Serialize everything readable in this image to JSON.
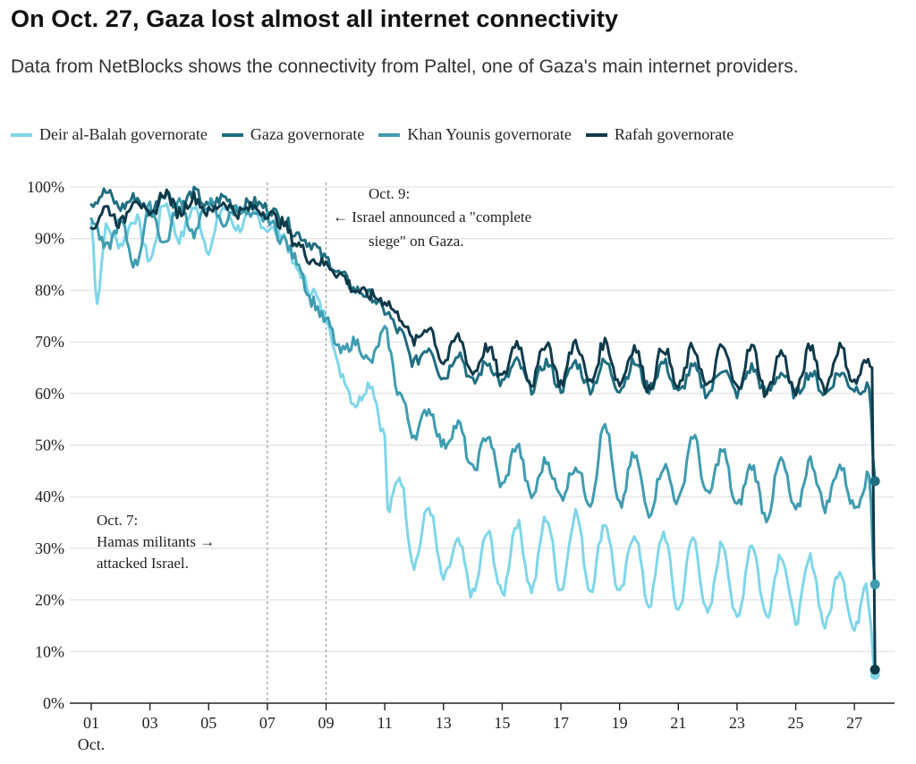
{
  "title": "On Oct. 27, Gaza lost almost all internet connectivity",
  "subtitle": "Data from NetBlocks shows the connectivity from Paltel, one of Gaza's main internet providers.",
  "chart_data": {
    "type": "line",
    "x_unit": "day of October",
    "xlim": [
      1,
      27.8
    ],
    "ylim": [
      0,
      100
    ],
    "y_ticks": [
      0,
      10,
      20,
      30,
      40,
      50,
      60,
      70,
      80,
      90,
      100
    ],
    "y_tick_labels": [
      "0%",
      "10%",
      "20%",
      "30%",
      "40%",
      "50%",
      "60%",
      "70%",
      "80%",
      "90%",
      "100%"
    ],
    "x_ticks": [
      1,
      3,
      5,
      7,
      9,
      11,
      13,
      15,
      17,
      19,
      21,
      23,
      25,
      27
    ],
    "x_tick_labels": [
      "01",
      "03",
      "05",
      "07",
      "09",
      "11",
      "13",
      "15",
      "17",
      "19",
      "21",
      "23",
      "25",
      "27"
    ],
    "x_sublabel": "Oct.",
    "grid": "horizontal",
    "legend_position": "top-left",
    "series": [
      {
        "name": "Deir al-Balah governorate",
        "color": "#7fd6e8",
        "points": [
          [
            1,
            93
          ],
          [
            1.2,
            78
          ],
          [
            1.5,
            92
          ],
          [
            2,
            89
          ],
          [
            2.5,
            94
          ],
          [
            3,
            86
          ],
          [
            3.5,
            97
          ],
          [
            4,
            90
          ],
          [
            4.5,
            96
          ],
          [
            5,
            88
          ],
          [
            5.5,
            96
          ],
          [
            6,
            92
          ],
          [
            6.5,
            95
          ],
          [
            7,
            92
          ],
          [
            7.5,
            91
          ],
          [
            8,
            84
          ],
          [
            8.5,
            80
          ],
          [
            9,
            75
          ],
          [
            9.5,
            64
          ],
          [
            10,
            58
          ],
          [
            10.5,
            62
          ],
          [
            11,
            52
          ],
          [
            11.1,
            37
          ],
          [
            11.5,
            44
          ],
          [
            12,
            27
          ],
          [
            12.5,
            38
          ],
          [
            13,
            24
          ],
          [
            13.5,
            31
          ],
          [
            14,
            21
          ],
          [
            14.5,
            33
          ],
          [
            15,
            21
          ],
          [
            15.5,
            35
          ],
          [
            16,
            22
          ],
          [
            16.5,
            36
          ],
          [
            17,
            22
          ],
          [
            17.5,
            37
          ],
          [
            18,
            22
          ],
          [
            18.5,
            35
          ],
          [
            19,
            21
          ],
          [
            19.5,
            33
          ],
          [
            20,
            19
          ],
          [
            20.5,
            33
          ],
          [
            21,
            18
          ],
          [
            21.5,
            32
          ],
          [
            22,
            17
          ],
          [
            22.5,
            31
          ],
          [
            23,
            16
          ],
          [
            23.5,
            31
          ],
          [
            24,
            17
          ],
          [
            24.5,
            29
          ],
          [
            25,
            16
          ],
          [
            25.5,
            28
          ],
          [
            26,
            15
          ],
          [
            26.5,
            26
          ],
          [
            27,
            14
          ],
          [
            27.4,
            24
          ],
          [
            27.5,
            18
          ],
          [
            27.7,
            5.5
          ]
        ]
      },
      {
        "name": "Gaza governorate",
        "color": "#1f6e80",
        "points": [
          [
            1,
            97
          ],
          [
            1.5,
            99
          ],
          [
            2,
            96
          ],
          [
            2.5,
            98
          ],
          [
            3,
            95
          ],
          [
            3.5,
            99
          ],
          [
            4,
            96
          ],
          [
            4.5,
            99
          ],
          [
            5,
            96
          ],
          [
            5.5,
            98
          ],
          [
            6,
            96
          ],
          [
            6.5,
            97
          ],
          [
            7,
            96
          ],
          [
            7.5,
            94
          ],
          [
            8,
            91
          ],
          [
            8.5,
            89
          ],
          [
            9,
            86
          ],
          [
            9.5,
            83
          ],
          [
            10,
            80
          ],
          [
            10.5,
            79
          ],
          [
            11,
            76
          ],
          [
            11.5,
            72
          ],
          [
            12,
            66
          ],
          [
            12.5,
            69
          ],
          [
            13,
            63
          ],
          [
            13.5,
            68
          ],
          [
            14,
            62
          ],
          [
            14.5,
            66
          ],
          [
            15,
            62
          ],
          [
            15.5,
            66
          ],
          [
            16,
            61
          ],
          [
            16.5,
            66
          ],
          [
            17,
            61
          ],
          [
            17.5,
            66
          ],
          [
            18,
            61
          ],
          [
            18.5,
            66
          ],
          [
            19,
            61
          ],
          [
            19.5,
            66
          ],
          [
            20,
            61
          ],
          [
            20.5,
            66
          ],
          [
            21,
            60
          ],
          [
            21.5,
            65
          ],
          [
            22,
            60
          ],
          [
            22.5,
            65
          ],
          [
            23,
            60
          ],
          [
            23.5,
            65
          ],
          [
            24,
            60
          ],
          [
            24.5,
            64
          ],
          [
            25,
            60
          ],
          [
            25.5,
            64
          ],
          [
            26,
            60
          ],
          [
            26.5,
            64
          ],
          [
            27,
            61
          ],
          [
            27.5,
            61
          ],
          [
            27.7,
            43
          ]
        ]
      },
      {
        "name": "Khan Younis governorate",
        "color": "#3f9cb0",
        "points": [
          [
            1,
            94
          ],
          [
            1.5,
            88
          ],
          [
            2,
            93
          ],
          [
            2.5,
            85
          ],
          [
            3,
            96
          ],
          [
            3.5,
            89
          ],
          [
            4,
            97
          ],
          [
            4.5,
            91
          ],
          [
            5,
            97
          ],
          [
            5.5,
            93
          ],
          [
            6,
            96
          ],
          [
            6.5,
            94
          ],
          [
            7,
            94
          ],
          [
            7.5,
            90
          ],
          [
            8,
            86
          ],
          [
            8.5,
            78
          ],
          [
            9,
            74
          ],
          [
            9.5,
            68
          ],
          [
            10,
            70
          ],
          [
            10.5,
            66
          ],
          [
            11,
            72
          ],
          [
            11.5,
            60
          ],
          [
            12,
            52
          ],
          [
            12.5,
            57
          ],
          [
            13,
            50
          ],
          [
            13.5,
            54
          ],
          [
            14,
            45
          ],
          [
            14.5,
            52
          ],
          [
            15,
            42
          ],
          [
            15.5,
            50
          ],
          [
            16,
            40
          ],
          [
            16.5,
            47
          ],
          [
            17,
            40
          ],
          [
            17.5,
            46
          ],
          [
            18,
            39
          ],
          [
            18.5,
            54
          ],
          [
            19,
            38
          ],
          [
            19.5,
            48
          ],
          [
            20,
            37
          ],
          [
            20.5,
            46
          ],
          [
            21,
            39
          ],
          [
            21.5,
            52
          ],
          [
            22,
            40
          ],
          [
            22.5,
            49
          ],
          [
            23,
            38
          ],
          [
            23.5,
            46
          ],
          [
            24,
            36
          ],
          [
            24.5,
            47
          ],
          [
            25,
            37
          ],
          [
            25.5,
            47
          ],
          [
            26,
            38
          ],
          [
            26.5,
            46
          ],
          [
            27,
            38
          ],
          [
            27.5,
            44
          ],
          [
            27.7,
            23
          ]
        ]
      },
      {
        "name": "Rafah governorate",
        "color": "#0f3a4a",
        "points": [
          [
            1,
            92
          ],
          [
            1.5,
            96
          ],
          [
            2,
            93
          ],
          [
            2.5,
            98
          ],
          [
            3,
            94
          ],
          [
            3.5,
            99
          ],
          [
            4,
            95
          ],
          [
            4.5,
            98
          ],
          [
            5,
            95
          ],
          [
            5.5,
            97
          ],
          [
            6,
            95
          ],
          [
            6.5,
            96
          ],
          [
            7,
            95
          ],
          [
            7.5,
            93
          ],
          [
            8,
            89
          ],
          [
            8.5,
            86
          ],
          [
            9,
            85
          ],
          [
            9.5,
            83
          ],
          [
            10,
            80
          ],
          [
            10.5,
            79
          ],
          [
            11,
            78
          ],
          [
            11.5,
            75
          ],
          [
            12,
            70
          ],
          [
            12.5,
            73
          ],
          [
            13,
            66
          ],
          [
            13.5,
            71
          ],
          [
            14,
            64
          ],
          [
            14.5,
            69
          ],
          [
            15,
            63
          ],
          [
            15.5,
            70
          ],
          [
            16,
            62
          ],
          [
            16.5,
            70
          ],
          [
            17,
            62
          ],
          [
            17.5,
            70
          ],
          [
            18,
            62
          ],
          [
            18.5,
            70
          ],
          [
            19,
            62
          ],
          [
            19.5,
            69
          ],
          [
            20,
            61
          ],
          [
            20.5,
            69
          ],
          [
            21,
            61
          ],
          [
            21.5,
            69
          ],
          [
            22,
            61
          ],
          [
            22.5,
            69
          ],
          [
            23,
            61
          ],
          [
            23.5,
            69
          ],
          [
            24,
            60
          ],
          [
            24.5,
            68
          ],
          [
            25,
            60
          ],
          [
            25.5,
            69
          ],
          [
            26,
            61
          ],
          [
            26.5,
            69
          ],
          [
            27,
            62
          ],
          [
            27.4,
            66
          ],
          [
            27.6,
            65
          ],
          [
            27.7,
            6.5
          ]
        ]
      }
    ],
    "annotations": [
      {
        "x": 7,
        "lines": [
          "Oct. 7:",
          "Hamas militants →",
          "attacked Israel."
        ]
      },
      {
        "x": 9,
        "lines": [
          "Oct. 9:",
          "← Israel announced a \"complete",
          "siege\" on Gaza."
        ]
      }
    ]
  }
}
